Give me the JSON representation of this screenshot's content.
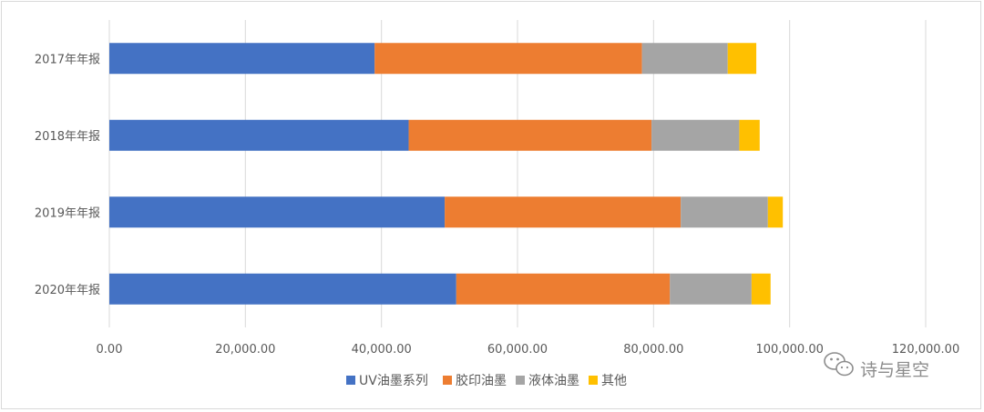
{
  "chart_data": {
    "type": "bar",
    "orientation": "horizontal",
    "stacked": true,
    "categories": [
      "2017年年报",
      "2018年年报",
      "2019年年报",
      "2020年年报"
    ],
    "series": [
      {
        "name": "UV油墨系列",
        "color": "#4472c4",
        "values": [
          39000,
          44000,
          49300,
          51000
        ]
      },
      {
        "name": "胶印油墨",
        "color": "#ed7d31",
        "values": [
          39300,
          35700,
          34700,
          31400
        ]
      },
      {
        "name": "液体油墨",
        "color": "#a5a5a5",
        "values": [
          12600,
          12900,
          12800,
          12000
        ]
      },
      {
        "name": "其他",
        "color": "#ffc000",
        "values": [
          4200,
          3000,
          2200,
          2800
        ]
      }
    ],
    "xlim": [
      0,
      120000
    ],
    "xticks": [
      "0.00",
      "20,000.00",
      "40,000.00",
      "60,000.00",
      "80,000.00",
      "100,000.00",
      "120,000.00"
    ],
    "grid": true,
    "legend_position": "bottom"
  },
  "watermark": {
    "text": "诗与星空",
    "icon": "wechat-icon"
  }
}
